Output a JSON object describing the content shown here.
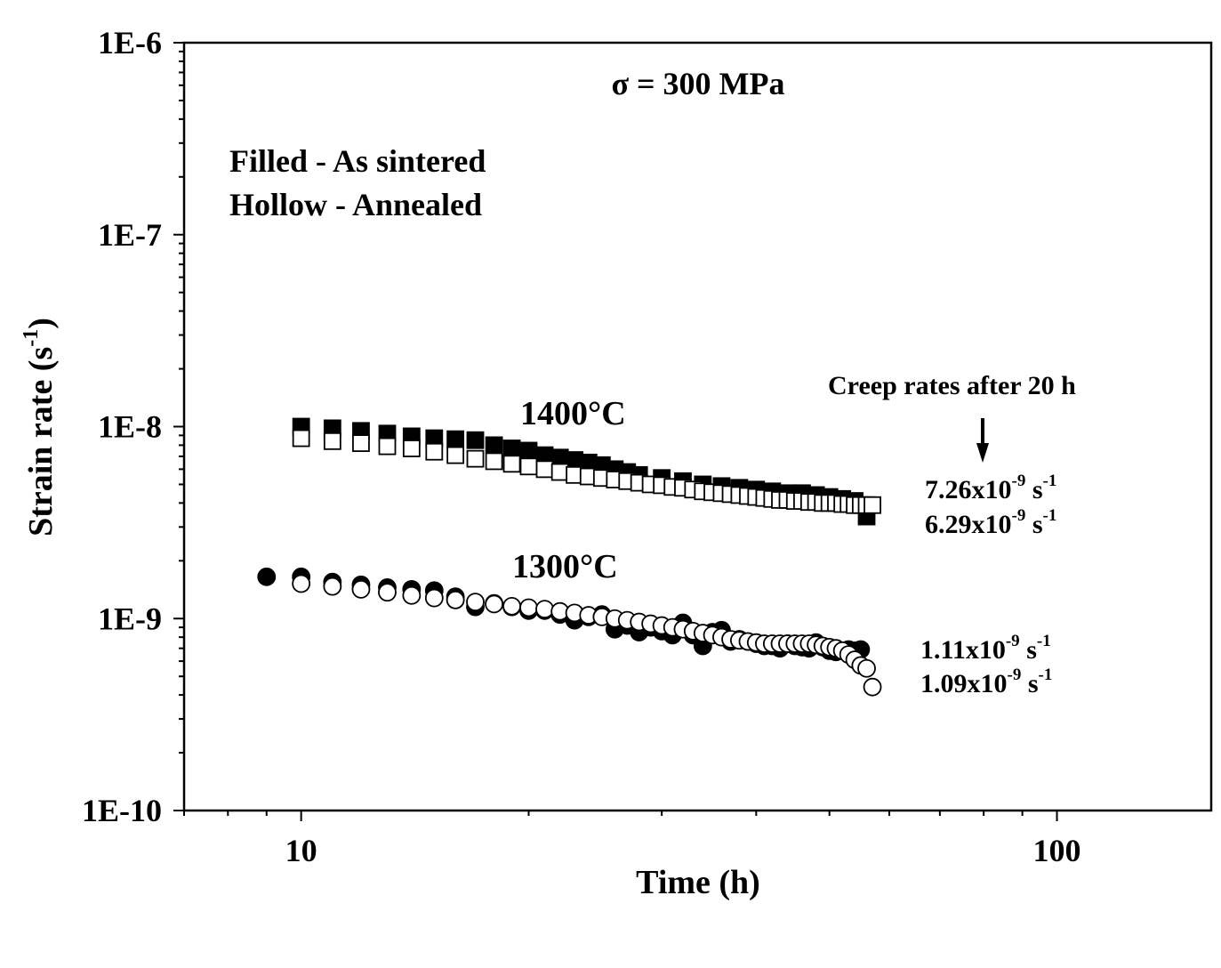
{
  "chart_data": {
    "type": "scatter",
    "xlabel": "Time (h)",
    "ylabel_main": "Strain rate (s",
    "ylabel_sup": "-1",
    "ylabel_close": ")",
    "x_scale": "log",
    "y_scale": "log",
    "xlim": [
      7,
      160
    ],
    "ylim": [
      1e-10,
      1e-06
    ],
    "x_ticks": [
      {
        "value": 10,
        "label": "10"
      },
      {
        "value": 100,
        "label": "100"
      }
    ],
    "y_ticks": [
      {
        "value": 1e-06,
        "label": "1E-6"
      },
      {
        "value": 1e-07,
        "label": "1E-7"
      },
      {
        "value": 1e-08,
        "label": "1E-8"
      },
      {
        "value": 1e-09,
        "label": "1E-9"
      },
      {
        "value": 1e-10,
        "label": "1E-10"
      }
    ],
    "grid": false,
    "annotations": {
      "stress": "σ = 300 MPa",
      "legend_filled": "Filled - As sintered",
      "legend_hollow": "Hollow - Annealed",
      "label_1400": "1400°C",
      "label_1300": "1300°C",
      "creep_title": "Creep rates after 20 h",
      "rates": [
        {
          "mantissa": "7.26x10",
          "exp": "-9",
          "unit": " s",
          "unit_exp": "-1"
        },
        {
          "mantissa": "6.29x10",
          "exp": "-9",
          "unit": " s",
          "unit_exp": "-1"
        },
        {
          "mantissa": "1.11x10",
          "exp": "-9",
          "unit": " s",
          "unit_exp": "-1"
        },
        {
          "mantissa": "1.09x10",
          "exp": "-9",
          "unit": " s",
          "unit_exp": "-1"
        }
      ]
    },
    "series": [
      {
        "marker": "square-filled",
        "temperature": "1400°C",
        "x": [
          10.0,
          11.0,
          12.0,
          13.0,
          14.0,
          15.0,
          16.0,
          17.0,
          18.0,
          19.0,
          20.0,
          21.0,
          22.0,
          23.0,
          24.0,
          25.0,
          26.0,
          27.0,
          28.0,
          30.0,
          32.0,
          34.0,
          36.0,
          38.0,
          40.0,
          42.0,
          44.0,
          46.0,
          48.0,
          50.0,
          52.0,
          54.0,
          56.0
        ],
        "y": [
          1e-08,
          9.8e-09,
          9.5e-09,
          9.2e-09,
          8.9e-09,
          8.7e-09,
          8.6e-09,
          8.5e-09,
          8e-09,
          7.7e-09,
          7.5e-09,
          7.1e-09,
          6.9e-09,
          6.7e-09,
          6.5e-09,
          6.3e-09,
          6e-09,
          5.8e-09,
          5.6e-09,
          5.4e-09,
          5.2e-09,
          5e-09,
          4.9e-09,
          4.8e-09,
          4.7e-09,
          4.6e-09,
          4.5e-09,
          4.5e-09,
          4.4e-09,
          4.3e-09,
          4.2e-09,
          4.1e-09,
          3.4e-09
        ]
      },
      {
        "marker": "square-hollow",
        "temperature": "1400°C",
        "x": [
          10.0,
          11.0,
          12.0,
          13.0,
          14.0,
          15.0,
          16.0,
          17.0,
          18.0,
          19.0,
          20.0,
          21.0,
          22.0,
          23.0,
          24.0,
          25.0,
          26.0,
          27.0,
          28.0,
          29.0,
          30.0,
          31.0,
          32.0,
          33.0,
          34.0,
          35.0,
          36.0,
          37.0,
          38.0,
          39.0,
          40.0,
          41.0,
          42.0,
          43.0,
          44.0,
          45.0,
          46.0,
          47.0,
          48.0,
          49.0,
          50.0,
          51.0,
          52.0,
          53.0,
          54.0,
          55.0,
          56.0,
          57.0
        ],
        "y": [
          8.7e-09,
          8.4e-09,
          8.2e-09,
          7.9e-09,
          7.7e-09,
          7.4e-09,
          7.1e-09,
          6.8e-09,
          6.6e-09,
          6.4e-09,
          6.2e-09,
          6e-09,
          5.8e-09,
          5.6e-09,
          5.5e-09,
          5.4e-09,
          5.3e-09,
          5.2e-09,
          5.1e-09,
          5e-09,
          4.95e-09,
          4.85e-09,
          4.8e-09,
          4.7e-09,
          4.6e-09,
          4.55e-09,
          4.5e-09,
          4.45e-09,
          4.4e-09,
          4.35e-09,
          4.3e-09,
          4.25e-09,
          4.2e-09,
          4.15e-09,
          4.15e-09,
          4.1e-09,
          4.1e-09,
          4.05e-09,
          4.05e-09,
          4e-09,
          4e-09,
          4e-09,
          3.95e-09,
          3.95e-09,
          3.9e-09,
          3.9e-09,
          3.9e-09,
          3.9e-09
        ]
      },
      {
        "marker": "circle-filled",
        "temperature": "1300°C",
        "x": [
          9.0,
          10.0,
          11.0,
          12.0,
          13.0,
          14.0,
          15.0,
          16.0,
          17.0,
          18.0,
          19.0,
          20.0,
          21.0,
          22.0,
          23.0,
          24.0,
          25.0,
          26.0,
          27.0,
          28.0,
          29.0,
          30.0,
          31.0,
          32.0,
          33.0,
          34.0,
          35.0,
          36.0,
          37.0,
          38.0,
          39.0,
          40.0,
          41.0,
          42.0,
          43.0,
          44.0,
          45.0,
          46.0,
          47.0,
          48.0,
          49.0,
          50.0,
          51.0,
          52.0,
          53.0,
          54.0,
          55.0
        ],
        "y": [
          1.65e-09,
          1.65e-09,
          1.55e-09,
          1.5e-09,
          1.45e-09,
          1.42e-09,
          1.4e-09,
          1.3e-09,
          1.15e-09,
          1.2e-09,
          1.15e-09,
          1.1e-09,
          1.1e-09,
          1.05e-09,
          9.8e-10,
          1.02e-09,
          1.05e-09,
          8.8e-10,
          9.2e-10,
          8.5e-10,
          9e-10,
          8.6e-10,
          8.2e-10,
          9.5e-10,
          8.2e-10,
          7.2e-10,
          8.5e-10,
          8.7e-10,
          7.6e-10,
          7.8e-10,
          7.6e-10,
          7.4e-10,
          7.2e-10,
          7.2e-10,
          7e-10,
          7.4e-10,
          7.2e-10,
          7.1e-10,
          7e-10,
          7.5e-10,
          7.1e-10,
          6.8e-10,
          6.7e-10,
          6.8e-10,
          6.9e-10,
          6.8e-10,
          6.9e-10
        ]
      },
      {
        "marker": "circle-hollow",
        "temperature": "1300°C",
        "x": [
          10.0,
          11.0,
          12.0,
          13.0,
          14.0,
          15.0,
          16.0,
          17.0,
          18.0,
          19.0,
          20.0,
          21.0,
          22.0,
          23.0,
          24.0,
          25.0,
          26.0,
          27.0,
          28.0,
          29.0,
          30.0,
          31.0,
          32.0,
          33.0,
          34.0,
          35.0,
          36.0,
          37.0,
          38.0,
          39.0,
          40.0,
          41.0,
          42.0,
          43.0,
          44.0,
          45.0,
          46.0,
          47.0,
          48.0,
          49.0,
          50.0,
          51.0,
          52.0,
          53.0,
          54.0,
          55.0,
          56.0,
          57.0
        ],
        "y": [
          1.52e-09,
          1.47e-09,
          1.42e-09,
          1.37e-09,
          1.32e-09,
          1.28e-09,
          1.25e-09,
          1.22e-09,
          1.19e-09,
          1.16e-09,
          1.14e-09,
          1.12e-09,
          1.09e-09,
          1.07e-09,
          1.04e-09,
          1.02e-09,
          1e-09,
          9.8e-10,
          9.6e-10,
          9.4e-10,
          9.2e-10,
          9e-10,
          8.8e-10,
          8.6e-10,
          8.4e-10,
          8.2e-10,
          8e-10,
          7.8e-10,
          7.7e-10,
          7.6e-10,
          7.5e-10,
          7.4e-10,
          7.4e-10,
          7.4e-10,
          7.4e-10,
          7.4e-10,
          7.4e-10,
          7.4e-10,
          7.3e-10,
          7.2e-10,
          7.1e-10,
          7e-10,
          6.8e-10,
          6.5e-10,
          6.1e-10,
          5.7e-10,
          5.5e-10,
          4.4e-10
        ]
      }
    ]
  }
}
